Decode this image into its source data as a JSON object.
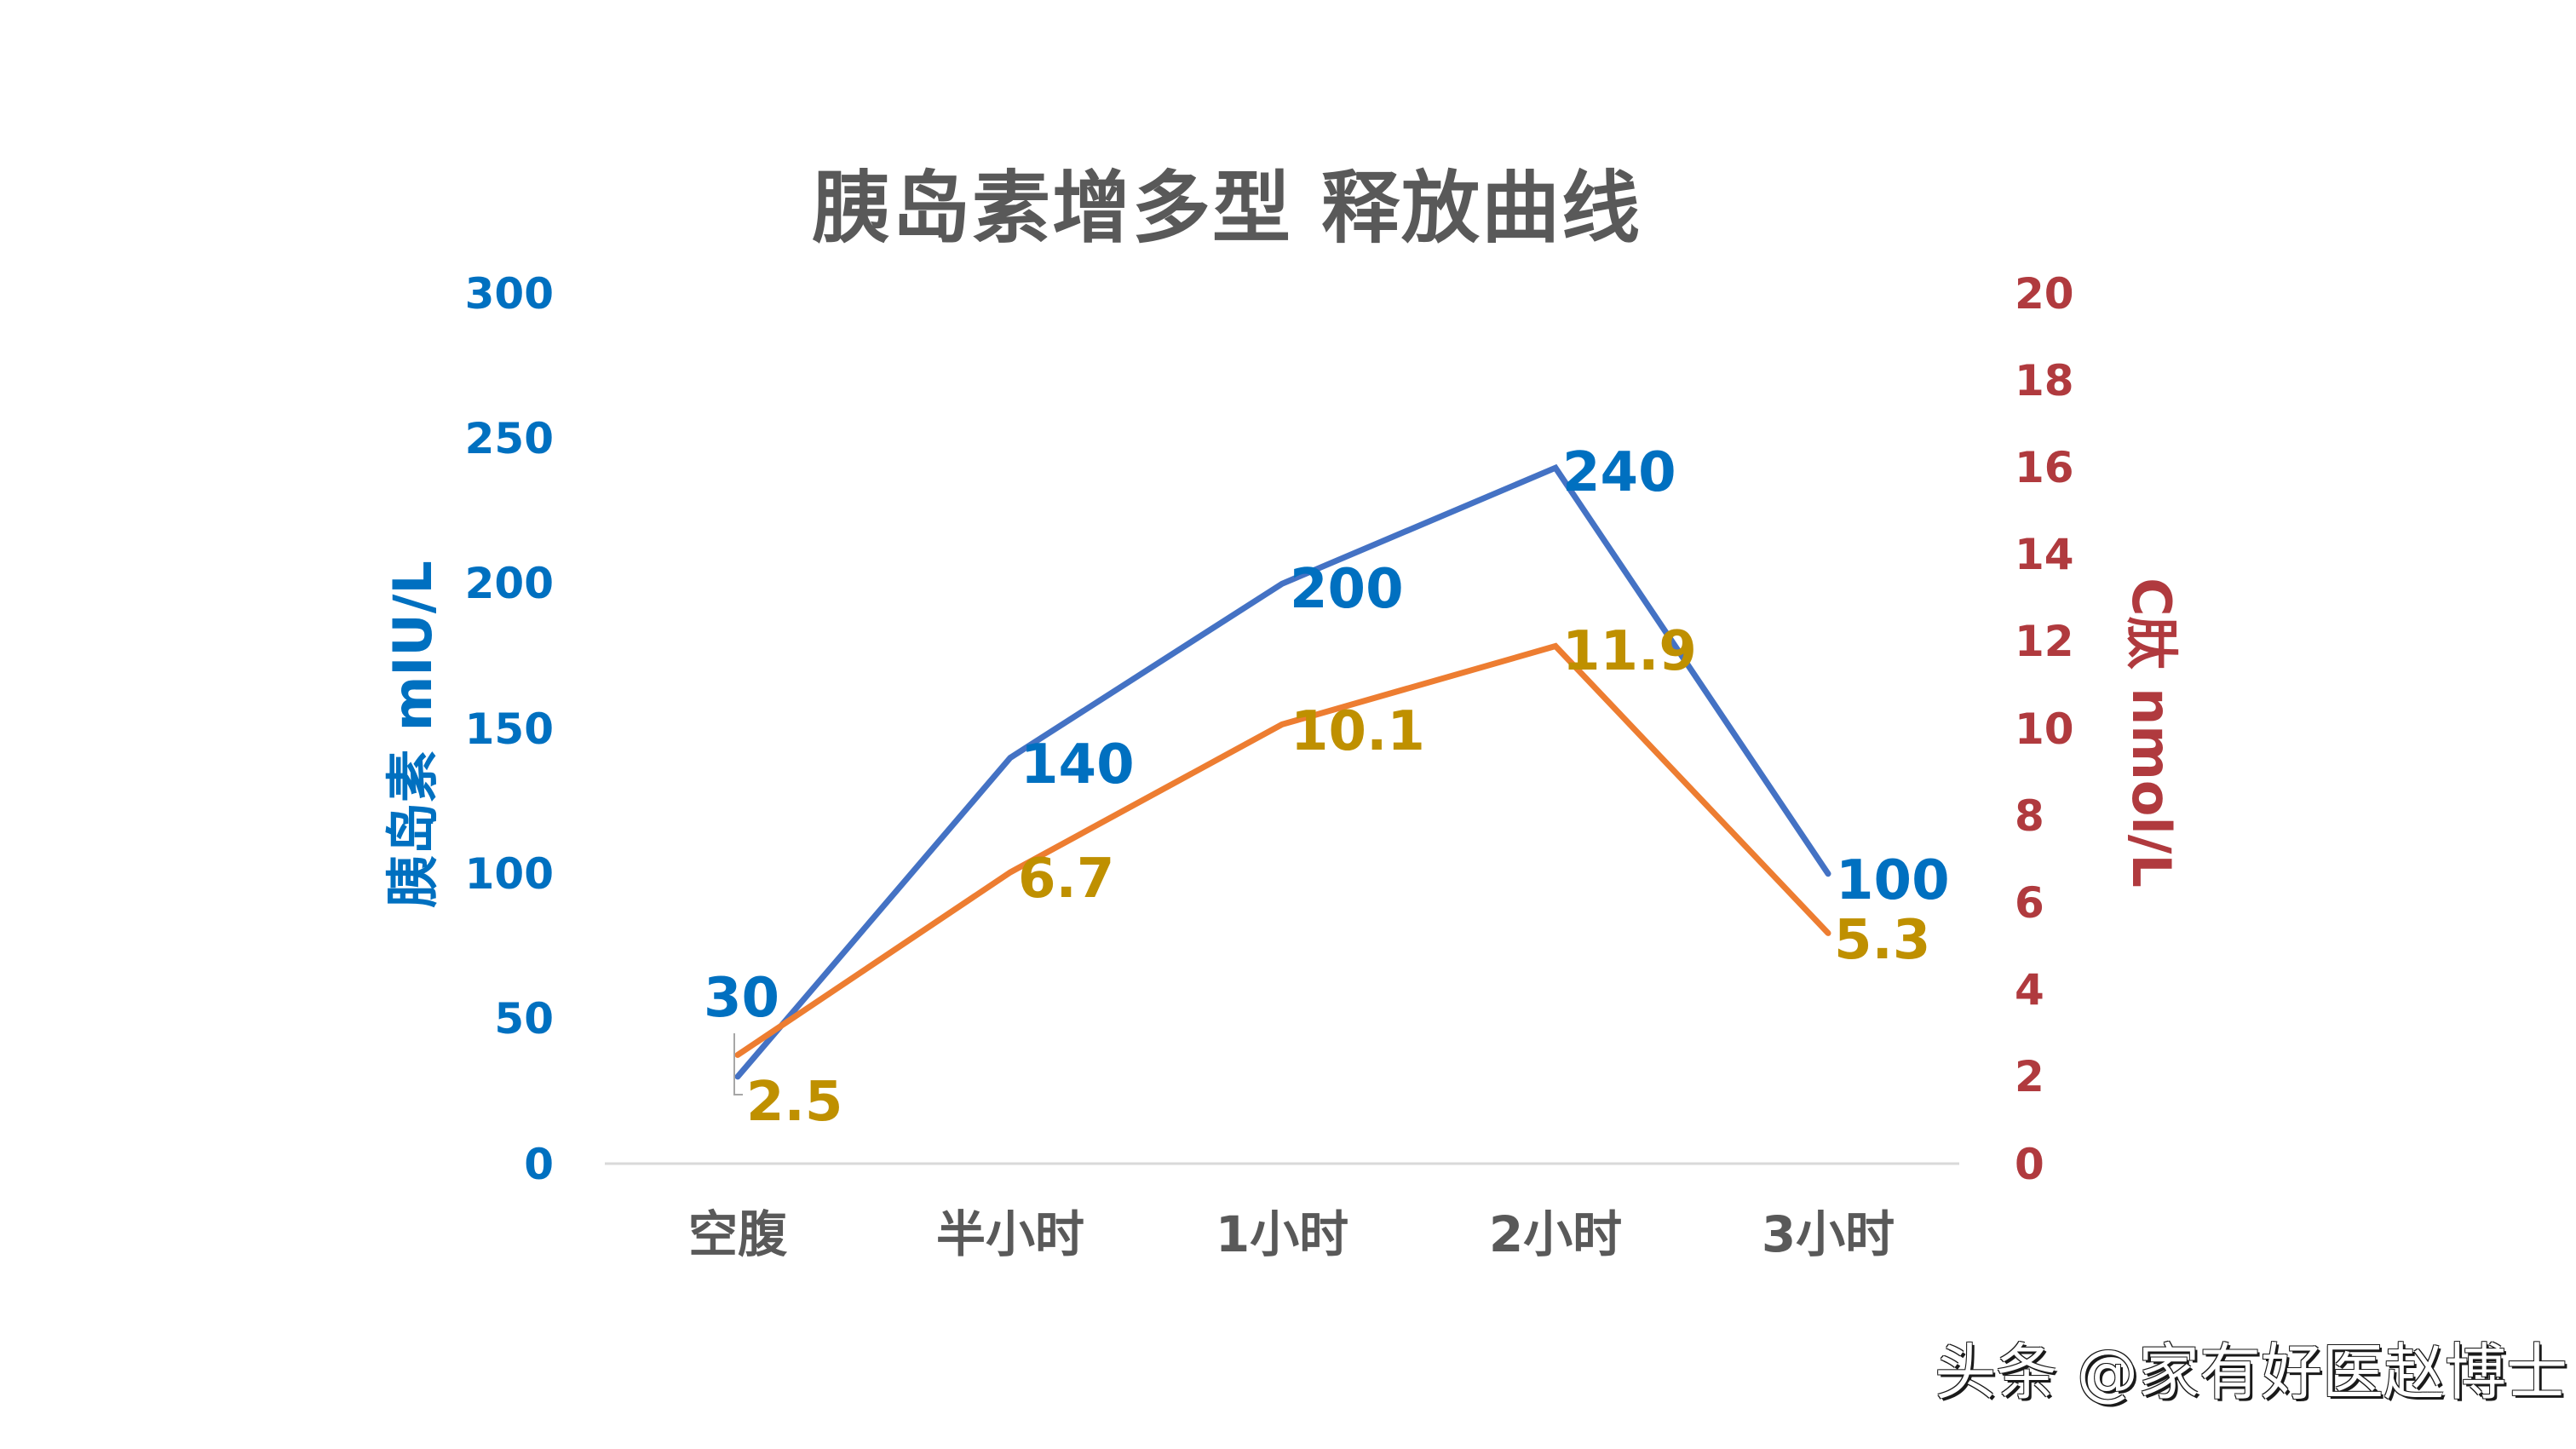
{
  "title": "胰岛素增多型 释放曲线",
  "watermark": "头条 @家有好医赵博士",
  "colors": {
    "insulin_line": "#4472C4",
    "cpeptide_line": "#ED7D31",
    "insulin_text": "#0070C0",
    "cpeptide_axis_text": "#B03A3E",
    "cpeptide_label_text": "#BF9000",
    "title_text": "#595959",
    "baseline": "#D9D9D9"
  },
  "axes": {
    "left": {
      "label": "胰岛素 mIU/L",
      "ticks": [
        "300",
        "250",
        "200",
        "150",
        "100",
        "50",
        "0"
      ]
    },
    "right": {
      "label": "C肽 nmol/L",
      "ticks": [
        "20",
        "18",
        "16",
        "14",
        "12",
        "10",
        "8",
        "6",
        "4",
        "2",
        "0"
      ]
    },
    "x": {
      "categories": [
        "空腹",
        "半小时",
        "1小时",
        "2小时",
        "3小时"
      ]
    }
  },
  "data_labels": {
    "insulin": [
      "30",
      "140",
      "200",
      "240",
      "100"
    ],
    "cpeptide": [
      "2.5",
      "6.7",
      "10.1",
      "11.9",
      "5.3"
    ]
  },
  "chart_data": {
    "type": "line",
    "title": "胰岛素增多型 释放曲线",
    "categories": [
      "空腹",
      "半小时",
      "1小时",
      "2小时",
      "3小时"
    ],
    "series": [
      {
        "name": "胰岛素",
        "axis": "left",
        "unit": "mIU/L",
        "color": "#4472C4",
        "values": [
          30,
          140,
          200,
          240,
          100
        ]
      },
      {
        "name": "C肽",
        "axis": "right",
        "unit": "nmol/L",
        "color": "#ED7D31",
        "values": [
          2.5,
          6.7,
          10.1,
          11.9,
          5.3
        ]
      }
    ],
    "xlabel": "",
    "ylabel": "胰岛素 mIU/L",
    "y2label": "C肽 nmol/L",
    "ylim": [
      0,
      300
    ],
    "y2lim": [
      0,
      20
    ],
    "yticks": [
      0,
      50,
      100,
      150,
      200,
      250,
      300
    ],
    "y2ticks": [
      0,
      2,
      4,
      6,
      8,
      10,
      12,
      14,
      16,
      18,
      20
    ],
    "grid": false,
    "legend": "none",
    "data_labels": true
  }
}
